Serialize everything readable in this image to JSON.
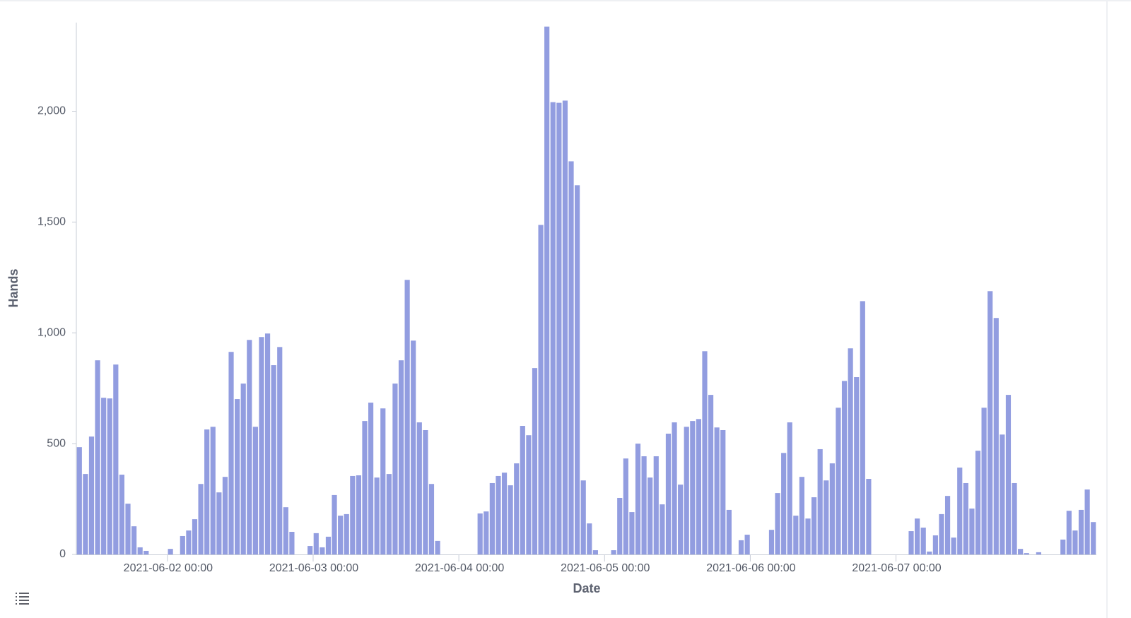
{
  "chart_data": {
    "type": "bar",
    "x_label": "Date",
    "y_label": "Hands",
    "x": [
      "2021-06-01 09:00",
      "2021-06-01 10:00",
      "2021-06-01 11:00",
      "2021-06-01 12:00",
      "2021-06-01 13:00",
      "2021-06-01 14:00",
      "2021-06-01 15:00",
      "2021-06-01 16:00",
      "2021-06-01 17:00",
      "2021-06-01 18:00",
      "2021-06-01 19:00",
      "2021-06-01 20:00",
      "2021-06-01 21:00",
      "2021-06-01 22:00",
      "2021-06-01 23:00",
      "2021-06-02 00:00",
      "2021-06-02 01:00",
      "2021-06-02 02:00",
      "2021-06-02 03:00",
      "2021-06-02 04:00",
      "2021-06-02 05:00",
      "2021-06-02 06:00",
      "2021-06-02 07:00",
      "2021-06-02 08:00",
      "2021-06-02 09:00",
      "2021-06-02 10:00",
      "2021-06-02 11:00",
      "2021-06-02 12:00",
      "2021-06-02 13:00",
      "2021-06-02 14:00",
      "2021-06-02 15:00",
      "2021-06-02 16:00",
      "2021-06-02 17:00",
      "2021-06-02 18:00",
      "2021-06-02 19:00",
      "2021-06-02 20:00",
      "2021-06-02 21:00",
      "2021-06-02 22:00",
      "2021-06-02 23:00",
      "2021-06-03 00:00",
      "2021-06-03 01:00",
      "2021-06-03 02:00",
      "2021-06-03 03:00",
      "2021-06-03 04:00",
      "2021-06-03 05:00",
      "2021-06-03 06:00",
      "2021-06-03 07:00",
      "2021-06-03 08:00",
      "2021-06-03 09:00",
      "2021-06-03 10:00",
      "2021-06-03 11:00",
      "2021-06-03 12:00",
      "2021-06-03 13:00",
      "2021-06-03 14:00",
      "2021-06-03 15:00",
      "2021-06-03 16:00",
      "2021-06-03 17:00",
      "2021-06-03 18:00",
      "2021-06-03 19:00",
      "2021-06-03 20:00",
      "2021-06-03 21:00",
      "2021-06-03 22:00",
      "2021-06-03 23:00",
      "2021-06-04 00:00",
      "2021-06-04 01:00",
      "2021-06-04 02:00",
      "2021-06-04 03:00",
      "2021-06-04 04:00",
      "2021-06-04 05:00",
      "2021-06-04 06:00",
      "2021-06-04 07:00",
      "2021-06-04 08:00",
      "2021-06-04 09:00",
      "2021-06-04 10:00",
      "2021-06-04 11:00",
      "2021-06-04 12:00",
      "2021-06-04 13:00",
      "2021-06-04 14:00",
      "2021-06-04 15:00",
      "2021-06-04 16:00",
      "2021-06-04 17:00",
      "2021-06-04 18:00",
      "2021-06-04 19:00",
      "2021-06-04 20:00",
      "2021-06-04 21:00",
      "2021-06-04 22:00",
      "2021-06-04 23:00",
      "2021-06-05 00:00",
      "2021-06-05 01:00",
      "2021-06-05 02:00",
      "2021-06-05 03:00",
      "2021-06-05 04:00",
      "2021-06-05 05:00",
      "2021-06-05 06:00",
      "2021-06-05 07:00",
      "2021-06-05 08:00",
      "2021-06-05 09:00",
      "2021-06-05 10:00",
      "2021-06-05 11:00",
      "2021-06-05 12:00",
      "2021-06-05 13:00",
      "2021-06-05 14:00",
      "2021-06-05 15:00",
      "2021-06-05 16:00",
      "2021-06-05 17:00",
      "2021-06-05 18:00",
      "2021-06-05 19:00",
      "2021-06-05 20:00",
      "2021-06-05 21:00",
      "2021-06-05 22:00",
      "2021-06-05 23:00",
      "2021-06-06 00:00",
      "2021-06-06 01:00",
      "2021-06-06 02:00",
      "2021-06-06 03:00",
      "2021-06-06 04:00",
      "2021-06-06 05:00",
      "2021-06-06 06:00",
      "2021-06-06 07:00",
      "2021-06-06 08:00",
      "2021-06-06 09:00",
      "2021-06-06 10:00",
      "2021-06-06 11:00",
      "2021-06-06 12:00",
      "2021-06-06 13:00",
      "2021-06-06 14:00",
      "2021-06-06 15:00",
      "2021-06-06 16:00",
      "2021-06-06 17:00",
      "2021-06-06 18:00",
      "2021-06-06 19:00",
      "2021-06-06 20:00",
      "2021-06-06 21:00",
      "2021-06-06 22:00",
      "2021-06-06 23:00",
      "2021-06-07 00:00",
      "2021-06-07 01:00",
      "2021-06-07 02:00",
      "2021-06-07 03:00",
      "2021-06-07 04:00",
      "2021-06-07 05:00",
      "2021-06-07 06:00",
      "2021-06-07 07:00",
      "2021-06-07 08:00",
      "2021-06-07 09:00",
      "2021-06-07 10:00",
      "2021-06-07 11:00",
      "2021-06-07 12:00",
      "2021-06-07 13:00",
      "2021-06-07 14:00",
      "2021-06-07 15:00",
      "2021-06-07 16:00",
      "2021-06-07 17:00",
      "2021-06-07 18:00",
      "2021-06-07 19:00",
      "2021-06-07 20:00",
      "2021-06-07 21:00",
      "2021-06-07 22:00",
      "2021-06-07 23:00",
      "2021-06-08 00:00",
      "2021-06-08 01:00",
      "2021-06-08 02:00",
      "2021-06-08 03:00",
      "2021-06-08 04:00",
      "2021-06-08 05:00",
      "2021-06-08 06:00",
      "2021-06-08 07:00",
      "2021-06-08 08:00"
    ],
    "values": [
      484,
      363,
      532,
      876,
      707,
      704,
      857,
      360,
      229,
      127,
      32,
      16,
      0,
      0,
      0,
      25,
      0,
      83,
      108,
      159,
      318,
      564,
      576,
      280,
      350,
      914,
      701,
      771,
      968,
      576,
      981,
      997,
      854,
      936,
      213,
      102,
      0,
      0,
      38,
      96,
      32,
      80,
      268,
      175,
      182,
      354,
      357,
      602,
      685,
      347,
      659,
      363,
      771,
      876,
      1239,
      965,
      596,
      561,
      318,
      61,
      0,
      0,
      0,
      0,
      0,
      0,
      185,
      194,
      322,
      354,
      369,
      312,
      411,
      580,
      538,
      841,
      1487,
      2382,
      2041,
      2038,
      2048,
      1774,
      1666,
      334,
      140,
      19,
      0,
      0,
      19,
      255,
      433,
      191,
      500,
      443,
      347,
      443,
      226,
      545,
      596,
      315,
      576,
      602,
      611,
      917,
      720,
      573,
      561,
      201,
      0,
      64,
      89,
      0,
      0,
      0,
      111,
      277,
      458,
      596,
      175,
      350,
      162,
      258,
      475,
      334,
      411,
      662,
      783,
      930,
      800,
      1143,
      341,
      0,
      0,
      0,
      0,
      0,
      0,
      105,
      162,
      121,
      13,
      86,
      182,
      264,
      76,
      392,
      322,
      207,
      468,
      662,
      1188,
      1067,
      541,
      720,
      322,
      25,
      6,
      0,
      10,
      0,
      0,
      0,
      67,
      197,
      108,
      201,
      293,
      146
    ],
    "color": "#929de0",
    "xlim": [
      "2021-06-01 09:00",
      "2021-06-08 09:00"
    ],
    "xticks": [
      "2021-06-02 00:00",
      "2021-06-03 00:00",
      "2021-06-04 00:00",
      "2021-06-05 00:00",
      "2021-06-06 00:00",
      "2021-06-07 00:00"
    ],
    "ylim": [
      0,
      2400
    ],
    "yticks": [
      0,
      500,
      {
        "value": 1000,
        "label": "1,000"
      },
      {
        "value": 1500,
        "label": "1,500"
      },
      {
        "value": 2000,
        "label": "2,000"
      }
    ],
    "grid": false
  }
}
